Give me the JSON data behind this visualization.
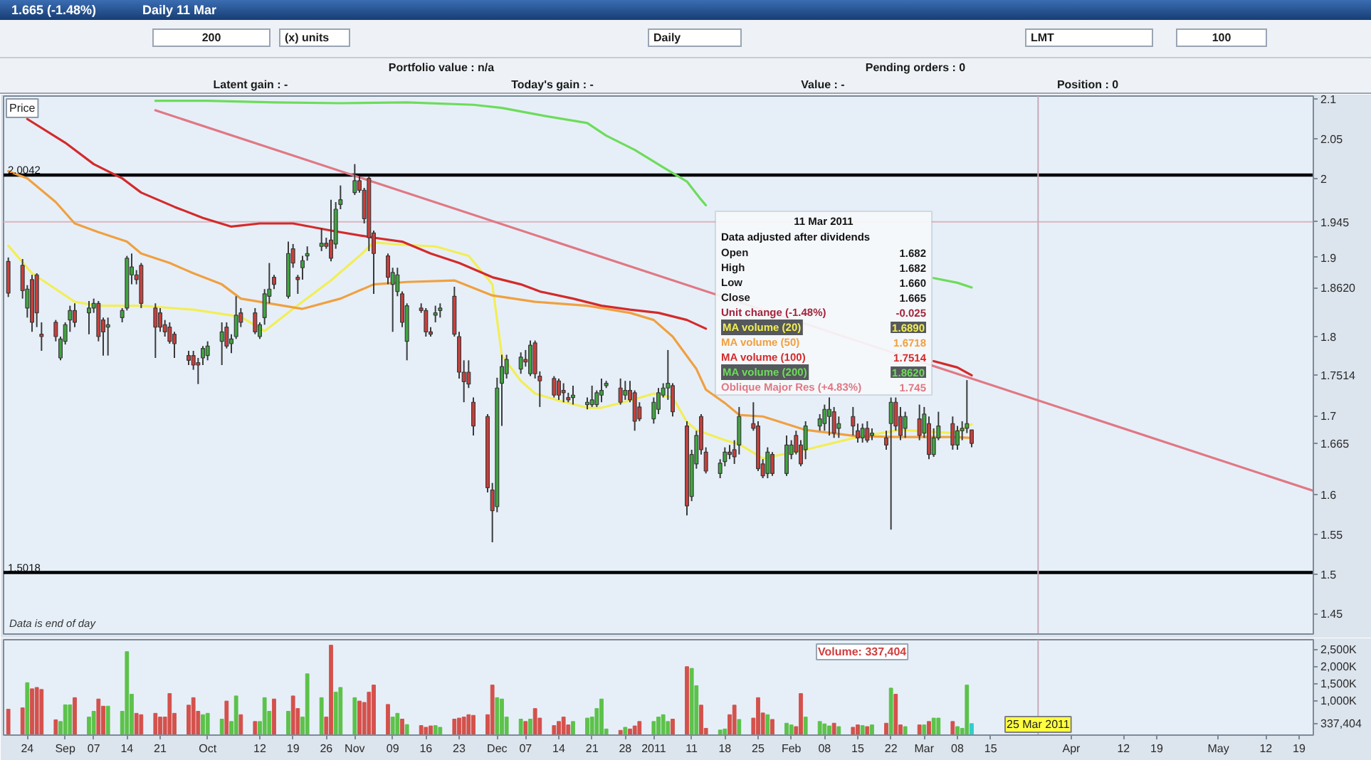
{
  "chart_data": [
    {
      "type": "other",
      "title": "1.665 (-1.48%)",
      "subtitle": "Daily 11 Mar",
      "annotations": [
        "200",
        "(x) units",
        "Daily",
        "LMT",
        "100",
        "Portfolio value : n/a",
        "Pending orders : 0",
        "Latent gain : -",
        "Today's gain : -",
        "Value : -",
        "Position : 0"
      ]
    },
    {
      "type": "candlestick",
      "x": [
        "2010-08-20",
        "2010-08-23",
        "2010-08-24",
        "2010-08-25",
        "2010-08-26",
        "2010-08-27",
        "2010-08-30",
        "2010-08-31",
        "2010-09-01",
        "2010-09-02",
        "2010-09-03",
        "2010-09-06",
        "2010-09-07",
        "2010-09-08",
        "2010-09-09",
        "2010-09-10",
        "2010-09-13",
        "2010-09-14",
        "2010-09-15",
        "2010-09-16",
        "2010-09-17",
        "2010-09-20",
        "2010-09-21",
        "2010-09-22",
        "2010-09-23",
        "2010-09-24",
        "2010-09-27",
        "2010-09-28",
        "2010-09-29",
        "2010-09-30",
        "2010-10-01",
        "2010-10-04",
        "2010-10-05",
        "2010-10-06",
        "2010-10-07",
        "2010-10-08",
        "2010-10-11",
        "2010-10-12",
        "2010-10-13",
        "2010-10-14",
        "2010-10-15",
        "2010-10-18",
        "2010-10-19",
        "2010-10-20",
        "2010-10-21",
        "2010-10-22",
        "2010-10-25",
        "2010-10-26",
        "2010-10-27",
        "2010-10-28",
        "2010-10-29",
        "2010-11-01",
        "2010-11-02",
        "2010-11-03",
        "2010-11-04",
        "2010-11-05",
        "2010-11-08",
        "2010-11-09",
        "2010-11-10",
        "2010-11-11",
        "2010-11-12",
        "2010-11-15",
        "2010-11-16",
        "2010-11-17",
        "2010-11-18",
        "2010-11-19",
        "2010-11-22",
        "2010-11-23",
        "2010-11-24",
        "2010-11-25",
        "2010-11-26",
        "2010-11-29",
        "2010-11-30",
        "2010-12-01",
        "2010-12-02",
        "2010-12-03",
        "2010-12-06",
        "2010-12-07",
        "2010-12-08",
        "2010-12-09",
        "2010-12-10",
        "2010-12-13",
        "2010-12-14",
        "2010-12-15",
        "2010-12-16",
        "2010-12-17",
        "2010-12-20",
        "2010-12-21",
        "2010-12-22",
        "2010-12-23",
        "2010-12-24",
        "2010-12-27",
        "2010-12-28",
        "2010-12-29",
        "2010-12-30",
        "2010-12-31",
        "2011-01-03",
        "2011-01-04",
        "2011-01-05",
        "2011-01-06",
        "2011-01-07",
        "2011-01-10",
        "2011-01-11",
        "2011-01-12",
        "2011-01-13",
        "2011-01-14",
        "2011-01-17",
        "2011-01-18",
        "2011-01-19",
        "2011-01-20",
        "2011-01-21",
        "2011-01-24",
        "2011-01-25",
        "2011-01-26",
        "2011-01-27",
        "2011-01-28",
        "2011-01-31",
        "2011-02-01",
        "2011-02-02",
        "2011-02-03",
        "2011-02-04",
        "2011-02-07",
        "2011-02-08",
        "2011-02-09",
        "2011-02-10",
        "2011-02-11",
        "2011-02-14",
        "2011-02-15",
        "2011-02-16",
        "2011-02-17",
        "2011-02-18",
        "2011-02-21",
        "2011-02-22",
        "2011-02-23",
        "2011-02-24",
        "2011-02-25",
        "2011-02-28",
        "2011-03-01",
        "2011-03-02",
        "2011-03-03",
        "2011-03-04",
        "2011-03-07",
        "2011-03-08",
        "2011-03-09",
        "2011-03-10",
        "2011-03-11"
      ],
      "ohlc": [
        [
          1.895,
          1.9,
          1.85,
          1.855
        ],
        [
          1.89,
          1.898,
          1.848,
          1.858
        ],
        [
          1.836,
          1.865,
          1.824,
          1.86
        ],
        [
          1.872,
          1.878,
          1.806,
          1.818
        ],
        [
          1.878,
          1.88,
          1.812,
          1.83
        ],
        [
          1.803,
          1.818,
          1.782,
          1.8
        ],
        [
          1.818,
          1.821,
          1.794,
          1.8
        ],
        [
          1.773,
          1.8,
          1.77,
          1.797
        ],
        [
          1.794,
          1.818,
          1.79,
          1.815
        ],
        [
          1.821,
          1.839,
          1.806,
          1.833
        ],
        [
          1.833,
          1.842,
          1.812,
          1.818
        ],
        [
          1.83,
          1.845,
          1.803,
          1.836
        ],
        [
          1.836,
          1.848,
          1.83,
          1.842
        ],
        [
          1.842,
          1.845,
          1.794,
          1.8
        ],
        [
          1.821,
          1.824,
          1.776,
          1.806
        ],
        [
          1.812,
          1.824,
          1.776,
          1.815
        ],
        [
          1.824,
          1.836,
          1.818,
          1.833
        ],
        [
          1.836,
          1.902,
          1.833,
          1.899
        ],
        [
          1.878,
          1.905,
          1.866,
          1.888
        ],
        [
          1.878,
          1.884,
          1.866,
          1.872
        ],
        [
          1.89,
          1.893,
          1.836,
          1.842
        ],
        [
          1.836,
          1.842,
          1.773,
          1.812
        ],
        [
          1.83,
          1.836,
          1.806,
          1.812
        ],
        [
          1.815,
          1.821,
          1.8,
          1.806
        ],
        [
          1.812,
          1.818,
          1.791,
          1.794
        ],
        [
          1.803,
          1.806,
          1.773,
          1.791
        ],
        [
          1.776,
          1.782,
          1.764,
          1.77
        ],
        [
          1.776,
          1.782,
          1.758,
          1.764
        ],
        [
          1.767,
          1.773,
          1.74,
          1.764
        ],
        [
          1.773,
          1.788,
          1.764,
          1.785
        ],
        [
          1.776,
          1.794,
          1.77,
          1.788
        ],
        [
          1.794,
          1.818,
          1.764,
          1.806
        ],
        [
          1.812,
          1.818,
          1.785,
          1.788
        ],
        [
          1.791,
          1.803,
          1.779,
          1.797
        ],
        [
          1.8,
          1.851,
          1.797,
          1.827
        ],
        [
          1.83,
          1.836,
          1.812,
          1.818
        ],
        [
          1.83,
          1.836,
          1.803,
          1.806
        ],
        [
          1.8,
          1.818,
          1.797,
          1.815
        ],
        [
          1.824,
          1.86,
          1.815,
          1.854
        ],
        [
          1.851,
          1.893,
          1.842,
          1.86
        ],
        [
          1.875,
          1.878,
          1.86,
          1.866
        ],
        [
          1.851,
          1.92,
          1.848,
          1.905
        ],
        [
          1.911,
          1.917,
          1.887,
          1.893
        ],
        [
          1.875,
          1.878,
          1.854,
          1.872
        ],
        [
          1.887,
          1.902,
          1.872,
          1.896
        ],
        [
          1.902,
          1.914,
          1.896,
          1.905
        ],
        [
          1.914,
          1.937,
          1.908,
          1.918
        ],
        [
          1.918,
          1.925,
          1.911,
          1.914
        ],
        [
          1.922,
          1.973,
          1.895,
          1.899
        ],
        [
          1.917,
          1.97,
          1.911,
          1.961
        ],
        [
          1.967,
          1.991,
          1.961,
          1.973
        ],
        [
          1.982,
          2.018,
          1.979,
          1.997
        ],
        [
          1.997,
          2.003,
          1.982,
          1.985
        ],
        [
          1.985,
          1.988,
          1.943,
          1.949
        ],
        [
          2.0,
          2.003,
          1.908,
          1.925
        ],
        [
          1.931,
          1.934,
          1.854,
          1.905
        ],
        [
          1.902,
          1.905,
          1.866,
          1.875
        ],
        [
          1.866,
          1.887,
          1.806,
          1.881
        ],
        [
          1.857,
          1.887,
          1.851,
          1.878
        ],
        [
          1.854,
          1.857,
          1.812,
          1.818
        ],
        [
          1.794,
          1.842,
          1.77,
          1.839
        ],
        [
          1.836,
          1.842,
          1.83,
          1.833
        ],
        [
          1.833,
          1.836,
          1.8,
          1.806
        ],
        [
          1.806,
          1.812,
          1.8,
          1.803
        ],
        [
          1.827,
          1.839,
          1.818,
          1.83
        ],
        [
          1.833,
          1.842,
          1.824,
          1.836
        ],
        [
          1.851,
          1.863,
          1.8,
          1.803
        ],
        [
          1.8,
          1.806,
          1.747,
          1.755
        ],
        [
          1.755,
          1.77,
          1.717,
          1.743
        ],
        [
          1.755,
          1.77,
          1.735,
          1.74
        ],
        [
          1.717,
          1.723,
          1.675,
          1.687
        ],
        [
          1.699,
          1.702,
          1.603,
          1.609
        ],
        [
          1.606,
          1.615,
          1.54,
          1.58
        ],
        [
          1.585,
          1.748,
          1.578,
          1.735
        ],
        [
          1.741,
          1.777,
          1.687,
          1.762
        ],
        [
          1.753,
          1.777,
          1.747,
          1.771
        ],
        [
          1.759,
          1.78,
          1.753,
          1.774
        ],
        [
          1.771,
          1.783,
          1.762,
          1.768
        ],
        [
          1.753,
          1.795,
          1.75,
          1.789
        ],
        [
          1.792,
          1.795,
          1.747,
          1.753
        ],
        [
          1.75,
          1.756,
          1.711,
          1.744
        ],
        [
          1.747,
          1.75,
          1.723,
          1.726
        ],
        [
          1.744,
          1.747,
          1.72,
          1.726
        ],
        [
          1.732,
          1.741,
          1.717,
          1.729
        ],
        [
          1.723,
          1.729,
          1.717,
          1.72
        ],
        [
          1.723,
          1.738,
          1.714,
          1.726
        ],
        [
          1.714,
          1.723,
          1.708,
          1.717
        ],
        [
          1.714,
          1.738,
          1.711,
          1.72
        ],
        [
          1.714,
          1.732,
          1.711,
          1.729
        ],
        [
          1.726,
          1.747,
          1.717,
          1.732
        ],
        [
          1.738,
          1.744,
          1.735,
          1.741
        ],
        [
          1.735,
          1.747,
          1.714,
          1.717
        ],
        [
          1.726,
          1.744,
          1.72,
          1.732
        ],
        [
          1.732,
          1.744,
          1.717,
          1.72
        ],
        [
          1.729,
          1.732,
          1.681,
          1.693
        ],
        [
          1.711,
          1.717,
          1.693,
          1.696
        ],
        [
          1.696,
          1.723,
          1.69,
          1.717
        ],
        [
          1.708,
          1.735,
          1.702,
          1.729
        ],
        [
          1.726,
          1.741,
          1.723,
          1.735
        ],
        [
          1.735,
          1.783,
          1.72,
          1.741
        ],
        [
          1.738,
          1.741,
          1.699,
          1.705
        ],
        [
          1.687,
          1.693,
          1.574,
          1.586
        ],
        [
          1.598,
          1.657,
          1.592,
          1.651
        ],
        [
          1.639,
          1.681,
          1.633,
          1.675
        ],
        [
          1.699,
          1.702,
          1.651,
          1.657
        ],
        [
          1.654,
          1.66,
          1.627,
          1.63
        ],
        [
          1.627,
          1.645,
          1.621,
          1.64
        ],
        [
          1.642,
          1.66,
          1.636,
          1.654
        ],
        [
          1.654,
          1.663,
          1.645,
          1.651
        ],
        [
          1.657,
          1.669,
          1.639,
          1.648
        ],
        [
          1.663,
          1.711,
          1.651,
          1.699
        ],
        [
          1.69,
          1.717,
          1.681,
          1.684
        ],
        [
          1.687,
          1.693,
          1.63,
          1.633
        ],
        [
          1.639,
          1.645,
          1.621,
          1.624
        ],
        [
          1.627,
          1.66,
          1.621,
          1.654
        ],
        [
          1.651,
          1.654,
          1.624,
          1.627
        ],
        [
          1.627,
          1.675,
          1.624,
          1.663
        ],
        [
          1.651,
          1.669,
          1.645,
          1.663
        ],
        [
          1.675,
          1.681,
          1.651,
          1.654
        ],
        [
          1.663,
          1.669,
          1.636,
          1.639
        ],
        [
          1.657,
          1.693,
          1.645,
          1.687
        ],
        [
          1.687,
          1.702,
          1.681,
          1.696
        ],
        [
          1.69,
          1.714,
          1.681,
          1.708
        ],
        [
          1.699,
          1.723,
          1.675,
          1.708
        ],
        [
          1.705,
          1.711,
          1.672,
          1.678
        ],
        [
          1.684,
          1.699,
          1.672,
          1.69
        ],
        [
          1.699,
          1.711,
          1.675,
          1.687
        ],
        [
          1.681,
          1.69,
          1.666,
          1.672
        ],
        [
          1.672,
          1.69,
          1.666,
          1.684
        ],
        [
          1.684,
          1.693,
          1.666,
          1.669
        ],
        [
          1.675,
          1.684,
          1.669,
          1.678
        ],
        [
          1.672,
          1.681,
          1.657,
          1.663
        ],
        [
          1.69,
          1.723,
          1.556,
          1.717
        ],
        [
          1.717,
          1.723,
          1.681,
          1.687
        ],
        [
          1.699,
          1.711,
          1.669,
          1.675
        ],
        [
          1.684,
          1.705,
          1.672,
          1.699
        ],
        [
          1.696,
          1.714,
          1.669,
          1.675
        ],
        [
          1.678,
          1.711,
          1.672,
          1.702
        ],
        [
          1.69,
          1.699,
          1.645,
          1.651
        ],
        [
          1.651,
          1.684,
          1.648,
          1.672
        ],
        [
          1.672,
          1.705,
          1.669,
          1.687
        ],
        [
          1.69,
          1.699,
          1.657,
          1.663
        ],
        [
          1.663,
          1.687,
          1.657,
          1.681
        ],
        [
          1.681,
          1.693,
          1.669,
          1.684
        ],
        [
          1.684,
          1.745,
          1.678,
          1.69
        ],
        [
          1.682,
          1.682,
          1.66,
          1.665
        ]
      ],
      "colors": [
        "#c8403c",
        "#c8403c",
        "#3fa63f",
        "#c8403c",
        "#c8403c",
        "#c8403c",
        "#c8403c",
        "#3fa63f",
        "#3fa63f",
        "#3fa63f",
        "#c8403c",
        "#3fa63f",
        "#3fa63f",
        "#c8403c",
        "#c8403c",
        "#3fa63f",
        "#3fa63f",
        "#3fa63f",
        "#3fa63f",
        "#c8403c",
        "#c8403c",
        "#c8403c",
        "#c8403c",
        "#c8403c",
        "#c8403c",
        "#c8403c",
        "#c8403c",
        "#c8403c",
        "#c8403c",
        "#3fa63f",
        "#3fa63f",
        "#3fa63f",
        "#c8403c",
        "#3fa63f",
        "#3fa63f",
        "#c8403c",
        "#c8403c",
        "#3fa63f",
        "#3fa63f",
        "#3fa63f",
        "#c8403c",
        "#3fa63f",
        "#c8403c",
        "#c8403c",
        "#3fa63f",
        "#3fa63f",
        "#3fa63f",
        "#c8403c",
        "#c8403c",
        "#3fa63f",
        "#3fa63f",
        "#3fa63f",
        "#c8403c",
        "#c8403c",
        "#c8403c",
        "#c8403c",
        "#c8403c",
        "#3fa63f",
        "#3fa63f",
        "#c8403c",
        "#3fa63f",
        "#c8403c",
        "#c8403c",
        "#c8403c",
        "#3fa63f",
        "#3fa63f",
        "#c8403c",
        "#c8403c",
        "#c8403c",
        "#c8403c",
        "#c8403c",
        "#c8403c",
        "#c8403c",
        "#3fa63f",
        "#3fa63f",
        "#3fa63f",
        "#3fa63f",
        "#c8403c",
        "#3fa63f",
        "#c8403c",
        "#c8403c",
        "#c8403c",
        "#c8403c",
        "#c8403c",
        "#c8403c",
        "#3fa63f",
        "#3fa63f",
        "#3fa63f",
        "#3fa63f",
        "#3fa63f",
        "#3fa63f",
        "#c8403c",
        "#3fa63f",
        "#c8403c",
        "#c8403c",
        "#c8403c",
        "#3fa63f",
        "#3fa63f",
        "#3fa63f",
        "#3fa63f",
        "#c8403c",
        "#c8403c",
        "#3fa63f",
        "#3fa63f",
        "#c8403c",
        "#c8403c",
        "#3fa63f",
        "#3fa63f",
        "#c8403c",
        "#c8403c",
        "#3fa63f",
        "#c8403c",
        "#c8403c",
        "#c8403c",
        "#3fa63f",
        "#c8403c",
        "#3fa63f",
        "#3fa63f",
        "#c8403c",
        "#c8403c",
        "#3fa63f",
        "#3fa63f",
        "#3fa63f",
        "#3fa63f",
        "#c8403c",
        "#3fa63f",
        "#c8403c",
        "#c8403c",
        "#3fa63f",
        "#c8403c",
        "#3fa63f",
        "#c8403c",
        "#3fa63f",
        "#c8403c",
        "#c8403c",
        "#3fa63f",
        "#c8403c",
        "#3fa63f",
        "#c8403c",
        "#3fa63f",
        "#3fa63f",
        "#c8403c",
        "#3fa63f",
        "#3fa63f",
        "#3fa63f",
        "#c8403c"
      ],
      "series": [
        {
          "type": "line",
          "name": "MA volume (20)",
          "color": "#f2ee55",
          "x": [
            "2010-08-20",
            "2010-08-25",
            "2010-08-30",
            "2010-09-03",
            "2010-09-08",
            "2010-09-17",
            "2010-09-28",
            "2010-10-08",
            "2010-10-13",
            "2010-10-19",
            "2010-10-27",
            "2010-11-02",
            "2010-11-05",
            "2010-11-11",
            "2010-11-18",
            "2010-11-25",
            "2010-11-30",
            "2010-12-02",
            "2010-12-06",
            "2010-12-09",
            "2010-12-14",
            "2010-12-20",
            "2010-12-23",
            "2010-12-29",
            "2011-01-03",
            "2011-01-07",
            "2011-01-10",
            "2011-01-12",
            "2011-01-18",
            "2011-01-21",
            "2011-01-26",
            "2011-02-04",
            "2011-02-15",
            "2011-02-24",
            "2011-03-07",
            "2011-03-11"
          ],
          "values": [
            1.915,
            1.88,
            1.86,
            1.844,
            1.839,
            1.839,
            1.834,
            1.825,
            1.807,
            1.835,
            1.871,
            1.902,
            1.919,
            1.916,
            1.914,
            1.902,
            1.866,
            1.776,
            1.744,
            1.728,
            1.719,
            1.71,
            1.71,
            1.719,
            1.728,
            1.723,
            1.692,
            1.682,
            1.669,
            1.664,
            1.646,
            1.657,
            1.673,
            1.682,
            1.678,
            1.689
          ]
        },
        {
          "type": "line",
          "name": "MA volume (50)",
          "color": "#f0a040",
          "x": [
            "2010-08-20",
            "2010-08-24",
            "2010-08-30",
            "2010-09-03",
            "2010-09-08",
            "2010-09-14",
            "2010-09-17",
            "2010-09-23",
            "2010-09-28",
            "2010-10-04",
            "2010-10-08",
            "2010-10-21",
            "2010-10-29",
            "2010-11-05",
            "2010-11-12",
            "2010-11-22",
            "2010-11-30",
            "2010-12-09",
            "2010-12-20",
            "2010-12-29",
            "2011-01-03",
            "2011-01-07",
            "2011-01-12",
            "2011-01-14",
            "2011-01-18",
            "2011-01-21",
            "2011-01-26",
            "2011-02-04",
            "2011-02-15",
            "2011-02-24",
            "2011-03-07",
            "2011-03-11"
          ],
          "values": [
            2.009,
            2.0,
            1.97,
            1.943,
            1.932,
            1.92,
            1.905,
            1.893,
            1.88,
            1.866,
            1.848,
            1.835,
            1.848,
            1.866,
            1.869,
            1.871,
            1.852,
            1.844,
            1.839,
            1.83,
            1.821,
            1.8,
            1.759,
            1.733,
            1.716,
            1.701,
            1.699,
            1.682,
            1.674,
            1.673,
            1.673,
            1.672
          ]
        },
        {
          "type": "line",
          "name": "MA volume (100)",
          "color": "#d42a2a",
          "x": [
            "2010-08-24",
            "2010-09-01",
            "2010-09-07",
            "2010-09-13",
            "2010-09-17",
            "2010-09-24",
            "2010-09-30",
            "2010-10-06",
            "2010-10-12",
            "2010-10-19",
            "2010-10-27",
            "2010-11-05",
            "2010-11-11",
            "2010-11-17",
            "2010-11-23",
            "2010-11-30",
            "2010-12-06",
            "2010-12-10",
            "2010-12-17",
            "2010-12-23",
            "2010-12-29",
            "2011-01-04",
            "2011-01-10",
            "2011-01-14",
            "2011-02-04",
            "2011-03-03",
            "2011-03-08",
            "2011-03-11"
          ],
          "values": [
            2.075,
            2.045,
            2.018,
            2.0,
            1.982,
            1.964,
            1.95,
            1.939,
            1.943,
            1.943,
            1.934,
            1.925,
            1.92,
            1.905,
            1.893,
            1.875,
            1.866,
            1.857,
            1.848,
            1.839,
            1.834,
            1.83,
            1.821,
            1.81,
            null,
            1.769,
            1.761,
            1.751
          ]
        },
        {
          "type": "line",
          "name": "MA volume (200)",
          "color": "#6ddc5a",
          "x": [
            "2010-09-20",
            "2010-10-01",
            "2010-10-15",
            "2010-10-29",
            "2010-11-12",
            "2010-11-26",
            "2010-12-02",
            "2010-12-10",
            "2010-12-20",
            "2010-12-24",
            "2010-12-30",
            "2011-01-05",
            "2011-01-10",
            "2011-01-13",
            "2011-01-14",
            "2011-02-04",
            "2011-03-03",
            "2011-03-08",
            "2011-03-11"
          ],
          "values": [
            2.098,
            2.098,
            2.096,
            2.095,
            2.096,
            2.093,
            2.089,
            2.08,
            2.07,
            2.054,
            2.036,
            2.014,
            1.996,
            1.973,
            1.966,
            null,
            1.874,
            1.868,
            1.862
          ]
        },
        {
          "type": "line",
          "name": "Oblique Major Res (+4.83%)",
          "color": "#e07884",
          "x": [
            "2010-09-20",
            "2011-05-22"
          ],
          "values": [
            2.086,
            1.605
          ]
        }
      ],
      "xlim": [
        "2010-08-19",
        "2011-05-22"
      ],
      "ylim": [
        1.424,
        2.104
      ],
      "yticks": [
        2.1,
        2.05,
        2,
        {
          "value": 1.945,
          "label": "1.945"
        },
        1.9,
        {
          "value": 1.862,
          "label": "1.8620"
        },
        1.8,
        {
          "value": 1.7514,
          "label": "1.7514"
        },
        1.7,
        {
          "value": 1.665,
          "label": "1.665"
        },
        1.6,
        1.55,
        1.5,
        1.45
      ],
      "tick_labels": "y",
      "legend": "top",
      "ref_lines": [
        {
          "axis": "y",
          "value": 2.0042,
          "color": "#000000"
        },
        {
          "axis": "y",
          "value": 1.5018,
          "color": "#000000"
        },
        {
          "axis": "y",
          "value": 1.945,
          "color": "#dcb4bc"
        },
        {
          "axis": "x",
          "value": "2011-03-25",
          "color": "#c9a9b9"
        }
      ],
      "annotations": [
        "Price",
        "Data is end of day",
        "11 Mar 2011",
        "Data adjusted after dividends",
        "Open",
        "1.682",
        "High",
        "1.682",
        "Low",
        "1.660",
        "Close",
        "1.665",
        "Unit change (-1.48%)",
        "-0.025",
        "1.6890",
        "1.6718",
        "1.7514",
        "1.8620",
        "1.745",
        {
          "text": "2.0042",
          "x": "2010-08-19",
          "y": 2.0042
        },
        {
          "text": "1.5018",
          "x": "2010-08-19",
          "y": 1.5018
        }
      ]
    },
    {
      "type": "bar",
      "x": [
        "2010-08-20",
        "2010-08-23",
        "2010-08-24",
        "2010-08-25",
        "2010-08-26",
        "2010-08-27",
        "2010-08-30",
        "2010-08-31",
        "2010-09-01",
        "2010-09-02",
        "2010-09-03",
        "2010-09-06",
        "2010-09-07",
        "2010-09-08",
        "2010-09-09",
        "2010-09-10",
        "2010-09-13",
        "2010-09-14",
        "2010-09-15",
        "2010-09-16",
        "2010-09-17",
        "2010-09-20",
        "2010-09-21",
        "2010-09-22",
        "2010-09-23",
        "2010-09-24",
        "2010-09-27",
        "2010-09-28",
        "2010-09-29",
        "2010-09-30",
        "2010-10-01",
        "2010-10-04",
        "2010-10-05",
        "2010-10-06",
        "2010-10-07",
        "2010-10-08",
        "2010-10-11",
        "2010-10-12",
        "2010-10-13",
        "2010-10-14",
        "2010-10-15",
        "2010-10-18",
        "2010-10-19",
        "2010-10-20",
        "2010-10-21",
        "2010-10-22",
        "2010-10-25",
        "2010-10-26",
        "2010-10-27",
        "2010-10-28",
        "2010-10-29",
        "2010-11-01",
        "2010-11-02",
        "2010-11-03",
        "2010-11-04",
        "2010-11-05",
        "2010-11-08",
        "2010-11-09",
        "2010-11-10",
        "2010-11-11",
        "2010-11-12",
        "2010-11-15",
        "2010-11-16",
        "2010-11-17",
        "2010-11-18",
        "2010-11-19",
        "2010-11-22",
        "2010-11-23",
        "2010-11-24",
        "2010-11-25",
        "2010-11-26",
        "2010-11-29",
        "2010-11-30",
        "2010-12-01",
        "2010-12-02",
        "2010-12-03",
        "2010-12-06",
        "2010-12-07",
        "2010-12-08",
        "2010-12-09",
        "2010-12-10",
        "2010-12-13",
        "2010-12-14",
        "2010-12-15",
        "2010-12-16",
        "2010-12-17",
        "2010-12-20",
        "2010-12-21",
        "2010-12-22",
        "2010-12-23",
        "2010-12-24",
        "2010-12-27",
        "2010-12-28",
        "2010-12-29",
        "2010-12-30",
        "2010-12-31",
        "2011-01-03",
        "2011-01-04",
        "2011-01-05",
        "2011-01-06",
        "2011-01-07",
        "2011-01-10",
        "2011-01-11",
        "2011-01-12",
        "2011-01-13",
        "2011-01-14",
        "2011-01-17",
        "2011-01-18",
        "2011-01-19",
        "2011-01-20",
        "2011-01-21",
        "2011-01-24",
        "2011-01-25",
        "2011-01-26",
        "2011-01-27",
        "2011-01-28",
        "2011-01-31",
        "2011-02-01",
        "2011-02-02",
        "2011-02-03",
        "2011-02-04",
        "2011-02-07",
        "2011-02-08",
        "2011-02-09",
        "2011-02-10",
        "2011-02-11",
        "2011-02-14",
        "2011-02-15",
        "2011-02-16",
        "2011-02-17",
        "2011-02-18",
        "2011-02-21",
        "2011-02-22",
        "2011-02-23",
        "2011-02-24",
        "2011-02-25",
        "2011-02-28",
        "2011-03-01",
        "2011-03-02",
        "2011-03-03",
        "2011-03-04",
        "2011-03-07",
        "2011-03-08",
        "2011-03-09",
        "2011-03-10",
        "2011-03-11"
      ],
      "values": [
        760000,
        800000,
        1540000,
        1360000,
        1400000,
        1340000,
        450000,
        400000,
        890000,
        890000,
        1100000,
        530000,
        700000,
        1060000,
        850000,
        850000,
        700000,
        2450000,
        1200000,
        640000,
        600000,
        640000,
        530000,
        530000,
        1220000,
        640000,
        880000,
        1100000,
        700000,
        600000,
        640000,
        470000,
        1000000,
        400000,
        1150000,
        600000,
        400000,
        400000,
        1100000,
        700000,
        1060000,
        700000,
        1150000,
        780000,
        530000,
        1800000,
        1100000,
        530000,
        2640000,
        1260000,
        1400000,
        1100000,
        1000000,
        960000,
        1260000,
        1470000,
        900000,
        530000,
        640000,
        470000,
        310000,
        280000,
        230000,
        270000,
        280000,
        230000,
        470000,
        500000,
        530000,
        600000,
        580000,
        600000,
        1470000,
        1100000,
        1060000,
        530000,
        470000,
        400000,
        470000,
        780000,
        500000,
        280000,
        400000,
        530000,
        300000,
        400000,
        500000,
        530000,
        780000,
        1060000,
        180000,
        140000,
        230000,
        180000,
        270000,
        400000,
        400000,
        530000,
        600000,
        400000,
        470000,
        2010000,
        1960000,
        1450000,
        880000,
        200000,
        150000,
        180000,
        600000,
        880000,
        460000,
        500000,
        1100000,
        650000,
        600000,
        460000,
        350000,
        300000,
        250000,
        1220000,
        530000,
        400000,
        330000,
        270000,
        350000,
        250000,
        230000,
        300000,
        280000,
        250000,
        300000,
        350000,
        1380000,
        1200000,
        300000,
        250000,
        300000,
        300000,
        400000,
        500000,
        500000,
        400000,
        250000,
        200000,
        1470000,
        337404
      ],
      "colors": [
        "#d4514c",
        "#d4514c",
        "#5cc24a",
        "#d4514c",
        "#d4514c",
        "#d4514c",
        "#d4514c",
        "#5cc24a",
        "#5cc24a",
        "#5cc24a",
        "#d4514c",
        "#5cc24a",
        "#5cc24a",
        "#d4514c",
        "#d4514c",
        "#5cc24a",
        "#5cc24a",
        "#5cc24a",
        "#5cc24a",
        "#d4514c",
        "#d4514c",
        "#d4514c",
        "#d4514c",
        "#d4514c",
        "#d4514c",
        "#d4514c",
        "#d4514c",
        "#d4514c",
        "#d4514c",
        "#5cc24a",
        "#5cc24a",
        "#5cc24a",
        "#d4514c",
        "#5cc24a",
        "#5cc24a",
        "#d4514c",
        "#d4514c",
        "#5cc24a",
        "#5cc24a",
        "#5cc24a",
        "#d4514c",
        "#5cc24a",
        "#d4514c",
        "#d4514c",
        "#5cc24a",
        "#5cc24a",
        "#5cc24a",
        "#d4514c",
        "#d4514c",
        "#5cc24a",
        "#5cc24a",
        "#5cc24a",
        "#d4514c",
        "#d4514c",
        "#d4514c",
        "#d4514c",
        "#d4514c",
        "#5cc24a",
        "#5cc24a",
        "#d4514c",
        "#5cc24a",
        "#d4514c",
        "#d4514c",
        "#d4514c",
        "#5cc24a",
        "#5cc24a",
        "#d4514c",
        "#d4514c",
        "#d4514c",
        "#d4514c",
        "#d4514c",
        "#d4514c",
        "#d4514c",
        "#5cc24a",
        "#5cc24a",
        "#5cc24a",
        "#5cc24a",
        "#d4514c",
        "#5cc24a",
        "#d4514c",
        "#d4514c",
        "#d4514c",
        "#d4514c",
        "#d4514c",
        "#d4514c",
        "#5cc24a",
        "#5cc24a",
        "#5cc24a",
        "#5cc24a",
        "#5cc24a",
        "#5cc24a",
        "#d4514c",
        "#5cc24a",
        "#d4514c",
        "#d4514c",
        "#d4514c",
        "#5cc24a",
        "#5cc24a",
        "#5cc24a",
        "#5cc24a",
        "#d4514c",
        "#d4514c",
        "#5cc24a",
        "#5cc24a",
        "#d4514c",
        "#d4514c",
        "#5cc24a",
        "#5cc24a",
        "#d4514c",
        "#d4514c",
        "#5cc24a",
        "#d4514c",
        "#d4514c",
        "#d4514c",
        "#5cc24a",
        "#d4514c",
        "#5cc24a",
        "#5cc24a",
        "#d4514c",
        "#d4514c",
        "#5cc24a",
        "#5cc24a",
        "#5cc24a",
        "#5cc24a",
        "#d4514c",
        "#5cc24a",
        "#d4514c",
        "#d4514c",
        "#5cc24a",
        "#d4514c",
        "#5cc24a",
        "#d4514c",
        "#5cc24a",
        "#d4514c",
        "#d4514c",
        "#5cc24a",
        "#d4514c",
        "#5cc24a",
        "#d4514c",
        "#5cc24a",
        "#5cc24a",
        "#d4514c",
        "#5cc24a",
        "#5cc24a",
        "#5cc24a",
        "#33cccc"
      ],
      "xlim": [
        "2010-08-19",
        "2011-05-22"
      ],
      "xticks": [
        {
          "value": "2010-08-24",
          "label": "24"
        },
        {
          "value": "2010-09-01",
          "label": "Sep"
        },
        {
          "value": "2010-09-07",
          "label": "07"
        },
        {
          "value": "2010-09-14",
          "label": "14"
        },
        {
          "value": "2010-09-21",
          "label": "21"
        },
        {
          "value": "2010-10-01",
          "label": "Oct"
        },
        {
          "value": "2010-10-12",
          "label": "12"
        },
        {
          "value": "2010-10-19",
          "label": "19"
        },
        {
          "value": "2010-10-26",
          "label": "26"
        },
        {
          "value": "2010-11-01",
          "label": "Nov"
        },
        {
          "value": "2010-11-09",
          "label": "09"
        },
        {
          "value": "2010-11-16",
          "label": "16"
        },
        {
          "value": "2010-11-23",
          "label": "23"
        },
        {
          "value": "2010-12-01",
          "label": "Dec"
        },
        {
          "value": "2010-12-07",
          "label": "07"
        },
        {
          "value": "2010-12-14",
          "label": "14"
        },
        {
          "value": "2010-12-21",
          "label": "21"
        },
        {
          "value": "2010-12-28",
          "label": "28"
        },
        {
          "value": "2011-01-03",
          "label": "2011"
        },
        {
          "value": "2011-01-11",
          "label": "11"
        },
        {
          "value": "2011-01-18",
          "label": "18"
        },
        {
          "value": "2011-01-25",
          "label": "25"
        },
        {
          "value": "2011-02-01",
          "label": "Feb"
        },
        {
          "value": "2011-02-08",
          "label": "08"
        },
        {
          "value": "2011-02-15",
          "label": "15"
        },
        {
          "value": "2011-02-22",
          "label": "22"
        },
        {
          "value": "2011-03-01",
          "label": "Mar"
        },
        {
          "value": "2011-03-08",
          "label": "08"
        },
        {
          "value": "2011-03-15",
          "label": "15"
        },
        {
          "value": "2011-04-01",
          "label": "Apr"
        },
        {
          "value": "2011-04-12",
          "label": "12"
        },
        {
          "value": "2011-04-19",
          "label": "19"
        },
        {
          "value": "2011-05-02",
          "label": "May"
        },
        {
          "value": "2011-05-12",
          "label": "12"
        },
        {
          "value": "2011-05-19",
          "label": "19"
        }
      ],
      "ylim": [
        0,
        2800000
      ],
      "yticks": [
        {
          "value": 337404,
          "label": "337,404"
        },
        {
          "value": 1000000,
          "label": "1,000K"
        },
        {
          "value": 1500000,
          "label": "1,500K"
        },
        {
          "value": 2000000,
          "label": "2,000K"
        },
        {
          "value": 2500000,
          "label": "2,500K"
        }
      ],
      "ref_lines": [
        {
          "axis": "x",
          "value": "2011-03-25",
          "label": "25 Mar 2011",
          "color": "#c9a9b9"
        }
      ],
      "annotations": [
        "Volume: 337,404"
      ]
    }
  ]
}
